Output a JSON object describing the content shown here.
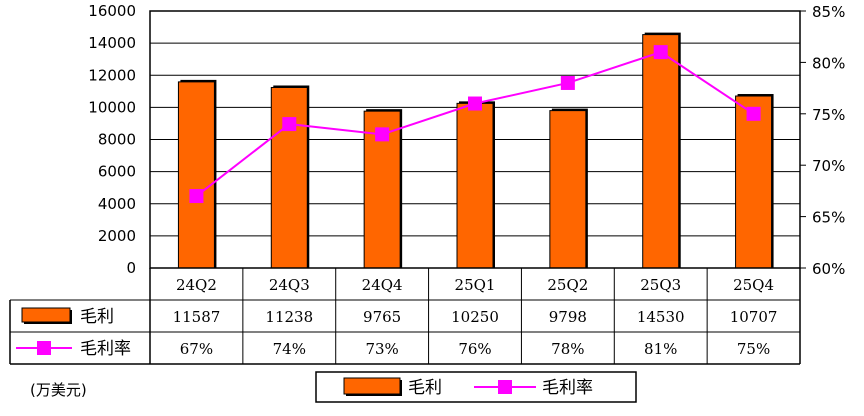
{
  "chart_data": {
    "type": "bar",
    "categories": [
      "24Q2",
      "24Q3",
      "24Q4",
      "25Q1",
      "25Q2",
      "25Q3",
      "25Q4"
    ],
    "series": [
      {
        "name": "毛利",
        "type": "bar",
        "axis": "left",
        "values": [
          11587,
          11238,
          9765,
          10250,
          9798,
          14530,
          10707
        ],
        "color": "#FF6600"
      },
      {
        "name": "毛利率",
        "type": "line",
        "axis": "right",
        "values": [
          67,
          74,
          73,
          76,
          78,
          81,
          75
        ],
        "table_labels": [
          "67%",
          "74%",
          "73%",
          "76%",
          "78%",
          "81%",
          "75%"
        ],
        "color": "#FF00FF"
      }
    ],
    "y_left": {
      "ylim": [
        0,
        16000
      ],
      "ticks": [
        "0",
        "2000",
        "4000",
        "6000",
        "8000",
        "10000",
        "12000",
        "14000",
        "16000"
      ]
    },
    "y_right": {
      "ylim": [
        60,
        85
      ],
      "ticks": [
        "60%",
        "65%",
        "70%",
        "75%",
        "80%",
        "85%"
      ]
    },
    "unit_note": "(万美元)",
    "legend": {
      "placement": "bottom",
      "entries": [
        "毛利",
        "毛利率"
      ]
    },
    "grid": true
  }
}
